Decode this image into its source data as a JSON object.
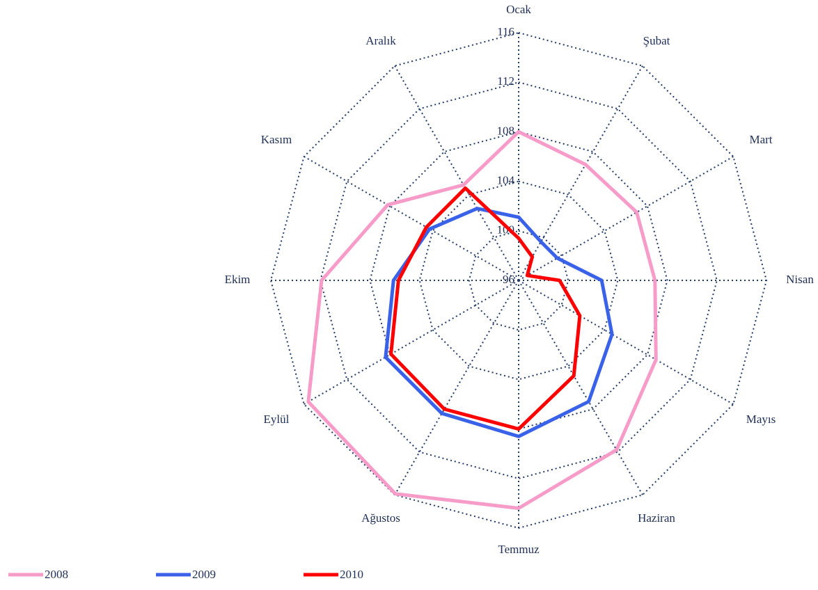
{
  "chart_data": {
    "type": "radar",
    "categories": [
      "Ocak",
      "Şubat",
      "Mart",
      "Nisan",
      "Mayıs",
      "Haziran",
      "Temmuz",
      "Ağustos",
      "Eylül",
      "Ekim",
      "Kasım",
      "Aralık"
    ],
    "series": [
      {
        "name": "2008",
        "color": "#f79bc8",
        "values": [
          108.0,
          106.8,
          107.0,
          107.0,
          108.8,
          111.8,
          114.4,
          115.9,
          115.6,
          111.9,
          108.2,
          104.9
        ]
      },
      {
        "name": "2009",
        "color": "#3a62e8",
        "values": [
          101.1,
          99.6,
          99.6,
          102.7,
          104.7,
          107.3,
          108.6,
          108.4,
          108.4,
          106.1,
          104.3,
          102.7
        ]
      },
      {
        "name": "2010",
        "color": "#ff0000",
        "values": [
          99.4,
          98.2,
          96.8,
          99.3,
          101.7,
          104.9,
          108.0,
          108.0,
          107.9,
          105.7,
          104.6,
          104.6
        ]
      }
    ],
    "ylim": [
      96,
      116
    ],
    "yticks": [
      96,
      100,
      104,
      108,
      112,
      116
    ],
    "grid": true,
    "legend": "bottom-left"
  }
}
